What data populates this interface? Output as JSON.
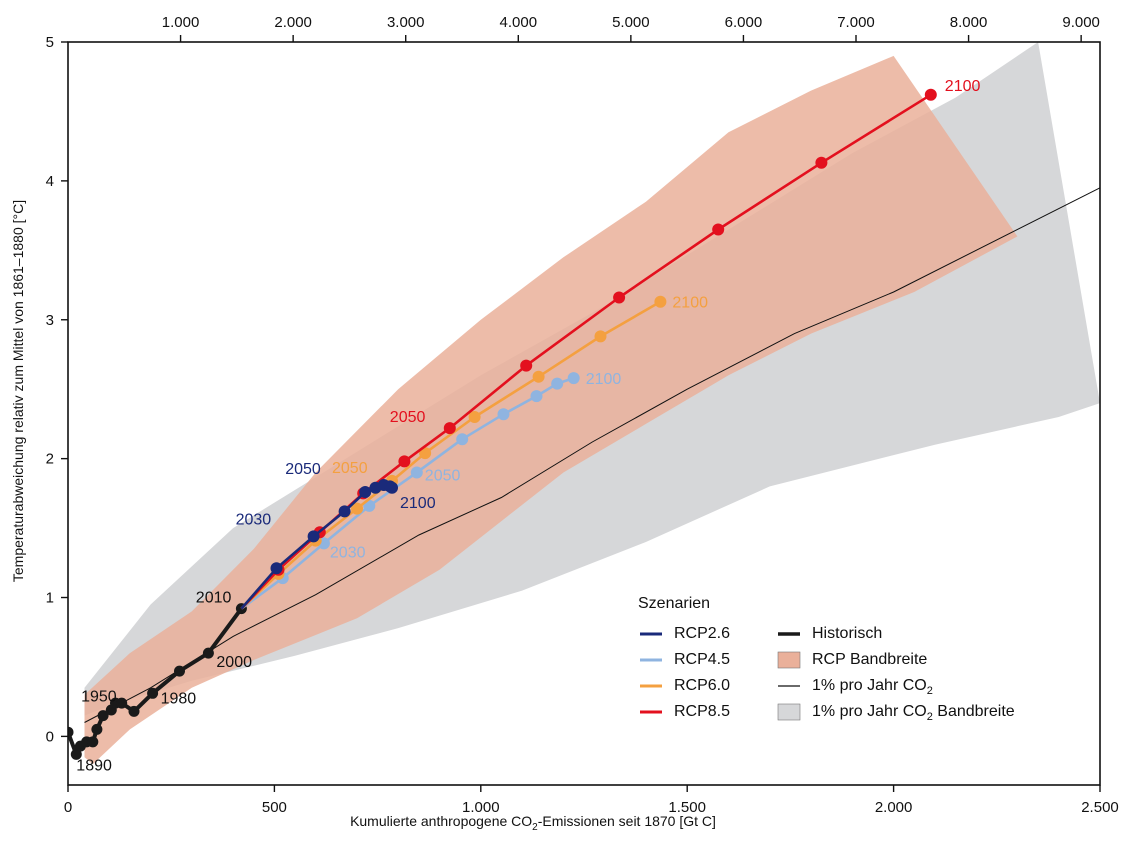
{
  "chart_data": {
    "type": "line",
    "xlabel": "Kumulierte anthropogene CO",
    "xlabel_sub": "2",
    "xlabel_end": "-Emissionen seit 1870 [Gt C]",
    "ylabel": "Temperaturabweichung relativ zum Mittel von 1861–1880 [°C]",
    "xlim": [
      0,
      2500
    ],
    "ylim": [
      -0.35,
      5
    ],
    "x_ticks": [
      0,
      500,
      1000,
      1500,
      2000,
      2500
    ],
    "x_tick_labels": [
      "0",
      "500",
      "1.000",
      "1.500",
      "2.000",
      "2.500"
    ],
    "y_ticks": [
      0,
      1,
      2,
      3,
      4,
      5
    ],
    "y_tick_labels": [
      "0",
      "1",
      "2",
      "3",
      "4",
      "5"
    ],
    "top_ticks": [
      1000,
      2000,
      3000,
      4000,
      5000,
      6000,
      7000,
      8000,
      9000
    ],
    "top_tick_labels": [
      "1.000",
      "2.000",
      "3.000",
      "4.000",
      "5.000",
      "6.000",
      "7.000",
      "8.000",
      "9.000"
    ],
    "top_axis_factor": 3.667,
    "legend": {
      "title": "Szenarien",
      "placement": "bottom-right",
      "items": [
        {
          "label": "RCP2.6",
          "kind": "line",
          "color": "#1a2a7a"
        },
        {
          "label": "RCP4.5",
          "kind": "line",
          "color": "#8fb4e0"
        },
        {
          "label": "RCP6.0",
          "kind": "line",
          "color": "#f4a040"
        },
        {
          "label": "RCP8.5",
          "kind": "line",
          "color": "#e3101e"
        },
        {
          "label": "Historisch",
          "kind": "thick",
          "color": "#1a1a1a"
        },
        {
          "label": "RCP Bandbreite",
          "kind": "box",
          "color": "#eab09a"
        },
        {
          "label": "1% pro Jahr CO",
          "sub": "2",
          "kind": "thin",
          "color": "#111111"
        },
        {
          "label": "1% pro Jahr CO",
          "sub": "2",
          "tail": " Bandbreite",
          "kind": "box",
          "color": "#d6d7d9"
        }
      ]
    },
    "bands": {
      "onepct_band": {
        "color": "#d6d7d9",
        "upper": [
          [
            40,
            0.35
          ],
          [
            200,
            0.95
          ],
          [
            400,
            1.5
          ],
          [
            700,
            2.05
          ],
          [
            1000,
            2.6
          ],
          [
            1300,
            3.1
          ],
          [
            1600,
            3.65
          ],
          [
            1900,
            4.2
          ],
          [
            2150,
            4.6
          ],
          [
            2350,
            5.0
          ]
        ],
        "lower": [
          [
            2500,
            2.4
          ],
          [
            2400,
            2.3
          ],
          [
            2100,
            2.1
          ],
          [
            1700,
            1.8
          ],
          [
            1400,
            1.4
          ],
          [
            1100,
            1.05
          ],
          [
            800,
            0.78
          ],
          [
            550,
            0.58
          ],
          [
            300,
            0.4
          ],
          [
            100,
            0.22
          ],
          [
            40,
            0.15
          ]
        ]
      },
      "rcp_band": {
        "color": "#eab09a",
        "upper": [
          [
            40,
            0.3
          ],
          [
            150,
            0.6
          ],
          [
            300,
            0.9
          ],
          [
            450,
            1.35
          ],
          [
            600,
            1.9
          ],
          [
            800,
            2.5
          ],
          [
            1000,
            3.0
          ],
          [
            1200,
            3.45
          ],
          [
            1400,
            3.85
          ],
          [
            1600,
            4.35
          ],
          [
            1800,
            4.65
          ],
          [
            2000,
            4.9
          ]
        ],
        "lower": [
          [
            2300,
            3.6
          ],
          [
            2050,
            3.2
          ],
          [
            1800,
            2.9
          ],
          [
            1600,
            2.6
          ],
          [
            1400,
            2.25
          ],
          [
            1200,
            1.9
          ],
          [
            1050,
            1.55
          ],
          [
            900,
            1.2
          ],
          [
            700,
            0.85
          ],
          [
            450,
            0.55
          ],
          [
            300,
            0.35
          ],
          [
            150,
            0.05
          ],
          [
            60,
            -0.2
          ],
          [
            40,
            -0.15
          ]
        ]
      }
    },
    "onepct_line": [
      [
        40,
        0.1
      ],
      [
        200,
        0.35
      ],
      [
        400,
        0.72
      ],
      [
        600,
        1.02
      ],
      [
        850,
        1.45
      ],
      [
        1050,
        1.72
      ],
      [
        1270,
        2.12
      ],
      [
        1500,
        2.5
      ],
      [
        1760,
        2.9
      ],
      [
        2000,
        3.2
      ],
      [
        2500,
        3.95
      ]
    ],
    "series": [
      {
        "name": "Historisch",
        "color": "#1a1a1a",
        "points": [
          [
            0,
            0.03
          ],
          [
            20,
            -0.13
          ],
          [
            30,
            -0.07
          ],
          [
            45,
            -0.04
          ],
          [
            60,
            -0.04
          ],
          [
            70,
            0.05
          ],
          [
            85,
            0.15
          ],
          [
            105,
            0.19
          ],
          [
            115,
            0.24
          ],
          [
            130,
            0.24
          ],
          [
            160,
            0.18
          ],
          [
            205,
            0.31
          ],
          [
            270,
            0.47
          ],
          [
            340,
            0.6
          ],
          [
            420,
            0.92
          ]
        ],
        "labels": [
          {
            "text": "1890",
            "x": 20,
            "y": -0.13
          },
          {
            "text": "1950",
            "x": 85,
            "y": 0.15
          },
          {
            "text": "1980",
            "x": 205,
            "y": 0.31
          },
          {
            "text": "2000",
            "x": 340,
            "y": 0.6
          },
          {
            "text": "2010",
            "x": 420,
            "y": 0.92
          }
        ]
      },
      {
        "name": "RCP4.5",
        "color": "#8fb4e0",
        "points": [
          [
            420,
            0.92
          ],
          [
            520,
            1.14
          ],
          [
            620,
            1.39
          ],
          [
            730,
            1.66
          ],
          [
            845,
            1.9
          ],
          [
            955,
            2.14
          ],
          [
            1055,
            2.32
          ],
          [
            1135,
            2.45
          ],
          [
            1185,
            2.54
          ],
          [
            1225,
            2.58
          ]
        ],
        "labels": [
          {
            "text": "2030",
            "x": 620,
            "y": 1.39
          },
          {
            "text": "2050",
            "x": 845,
            "y": 1.9
          },
          {
            "text": "2100",
            "x": 1225,
            "y": 2.58
          }
        ]
      },
      {
        "name": "RCP6.0",
        "color": "#f4a040",
        "points": [
          [
            420,
            0.92
          ],
          [
            510,
            1.17
          ],
          [
            600,
            1.41
          ],
          [
            700,
            1.64
          ],
          [
            785,
            1.84
          ],
          [
            865,
            2.04
          ],
          [
            985,
            2.3
          ],
          [
            1140,
            2.59
          ],
          [
            1290,
            2.88
          ],
          [
            1435,
            3.13
          ]
        ],
        "labels": [
          {
            "text": "2050",
            "x": 785,
            "y": 1.84
          },
          {
            "text": "2100",
            "x": 1435,
            "y": 3.13
          }
        ]
      },
      {
        "name": "RCP8.5",
        "color": "#e3101e",
        "points": [
          [
            420,
            0.92
          ],
          [
            510,
            1.2
          ],
          [
            610,
            1.47
          ],
          [
            715,
            1.75
          ],
          [
            815,
            1.98
          ],
          [
            925,
            2.22
          ],
          [
            1110,
            2.67
          ],
          [
            1335,
            3.16
          ],
          [
            1575,
            3.65
          ],
          [
            1825,
            4.13
          ],
          [
            2090,
            4.62
          ]
        ],
        "labels": [
          {
            "text": "2050",
            "x": 925,
            "y": 2.22
          },
          {
            "text": "2100",
            "x": 2090,
            "y": 4.62
          }
        ]
      },
      {
        "name": "RCP2.6",
        "color": "#1a2a7a",
        "points": [
          [
            420,
            0.92
          ],
          [
            505,
            1.21
          ],
          [
            595,
            1.44
          ],
          [
            670,
            1.62
          ],
          [
            720,
            1.76
          ],
          [
            745,
            1.79
          ],
          [
            765,
            1.81
          ],
          [
            780,
            1.8
          ],
          [
            785,
            1.79
          ]
        ],
        "labels": [
          {
            "text": "2030",
            "x": 595,
            "y": 1.44
          },
          {
            "text": "2050",
            "x": 720,
            "y": 1.76
          },
          {
            "text": "2100",
            "x": 785,
            "y": 1.79
          }
        ]
      }
    ]
  }
}
